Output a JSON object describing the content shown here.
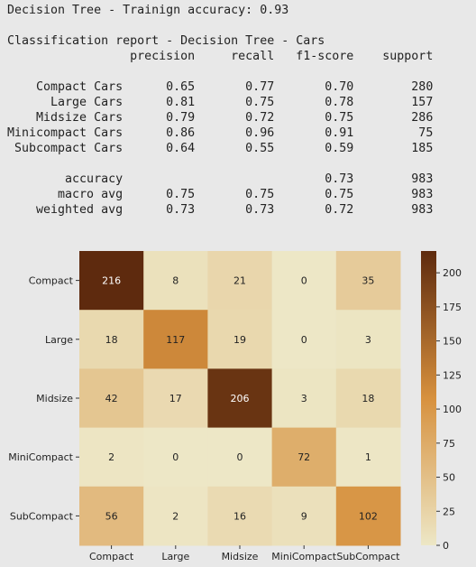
{
  "output": {
    "accuracy_line": "Decision Tree - Trainign accuracy: 0.93",
    "report_title": "Classification report - Decision Tree - Cars",
    "report_header": [
      "precision",
      "recall",
      "f1-score",
      "support"
    ],
    "report_rows": [
      {
        "label": "Compact Cars",
        "precision": "0.65",
        "recall": "0.77",
        "f1": "0.70",
        "support": "280"
      },
      {
        "label": "Large Cars",
        "precision": "0.81",
        "recall": "0.75",
        "f1": "0.78",
        "support": "157"
      },
      {
        "label": "Midsize Cars",
        "precision": "0.79",
        "recall": "0.72",
        "f1": "0.75",
        "support": "286"
      },
      {
        "label": "Minicompact Cars",
        "precision": "0.86",
        "recall": "0.96",
        "f1": "0.91",
        "support": "75"
      },
      {
        "label": "Subcompact Cars",
        "precision": "0.64",
        "recall": "0.55",
        "f1": "0.59",
        "support": "185"
      }
    ],
    "report_summary": [
      {
        "label": "accuracy",
        "precision": "",
        "recall": "",
        "f1": "0.73",
        "support": "983"
      },
      {
        "label": "macro avg",
        "precision": "0.75",
        "recall": "0.75",
        "f1": "0.75",
        "support": "983"
      },
      {
        "label": "weighted avg",
        "precision": "0.73",
        "recall": "0.73",
        "f1": "0.72",
        "support": "983"
      }
    ]
  },
  "chart_data": {
    "type": "heatmap",
    "row_labels": [
      "Compact",
      "Large",
      "Midsize",
      "MiniCompact",
      "SubCompact"
    ],
    "col_labels": [
      "Compact",
      "Large",
      "Midsize",
      "MiniCompact",
      "SubCompact"
    ],
    "matrix": [
      [
        216,
        8,
        21,
        0,
        35
      ],
      [
        18,
        117,
        19,
        0,
        3
      ],
      [
        42,
        17,
        206,
        3,
        18
      ],
      [
        2,
        0,
        0,
        72,
        1
      ],
      [
        56,
        2,
        16,
        9,
        102
      ]
    ],
    "colorbar": {
      "range": [
        0,
        216
      ],
      "ticks": [
        0,
        25,
        50,
        75,
        100,
        125,
        150,
        175,
        200
      ]
    },
    "colormap": {
      "low": "#ede7c6",
      "mid": "#d7913e",
      "high": "#5e2a0e"
    }
  }
}
